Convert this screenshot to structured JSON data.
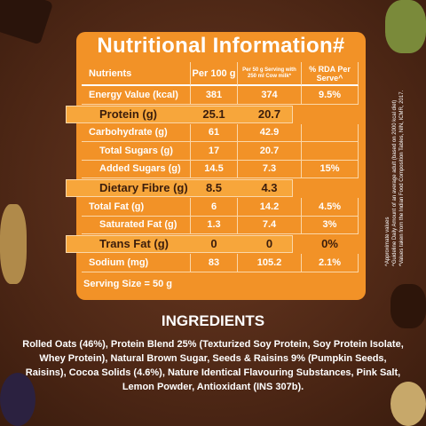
{
  "table": {
    "title": "Nutritional Information#",
    "header": [
      "Nutrients",
      "Per 100 g",
      "Per 50 g Serving with 250 ml Cow milk*",
      "% RDA Per Serve^"
    ],
    "rows": [
      {
        "cells": [
          "Energy Value (kcal)",
          "381",
          "374",
          "9.5%"
        ]
      },
      {
        "cells": [
          "Protein (g)",
          "25.1",
          "20.7"
        ],
        "highlight": true
      },
      {
        "cells": [
          "Carbohydrate (g)",
          "61",
          "42.9"
        ]
      },
      {
        "cells": [
          "Total Sugars (g)",
          "17",
          "20.7"
        ],
        "indent": true
      },
      {
        "cells": [
          "Added Sugars (g)",
          "14.5",
          "7.3",
          "15%"
        ],
        "indent": true
      },
      {
        "cells": [
          "Dietary Fibre (g)",
          "8.5",
          "4.3"
        ],
        "highlight": true
      },
      {
        "cells": [
          "Total Fat (g)",
          "6",
          "14.2",
          "4.5%"
        ]
      },
      {
        "cells": [
          "Saturated Fat (g)",
          "1.3",
          "7.4",
          "3%"
        ],
        "indent": true
      },
      {
        "cells": [
          "Trans Fat (g)",
          "0",
          "0",
          "0%"
        ],
        "highlight": true
      },
      {
        "cells": [
          "Sodium (mg)",
          "83",
          "105.2",
          "2.1%"
        ]
      }
    ],
    "serving_size": "Serving Size = 50 g"
  },
  "footnotes": [
    "^Approximate values",
    "^Guideline Daily Amount of an average adult (based on 2000 kcal diet)",
    "*Values taken from the Indian Food Composition Tables, NIN, ICMR, 2017."
  ],
  "ingredients": {
    "title": "INGREDIENTS",
    "text": "Rolled Oats (46%), Protein Blend 25% (Texturized Soy Protein, Soy Protein Isolate, Whey Protein), Natural Brown Sugar, Seeds & Raisins 9% (Pumpkin Seeds, Raisins), Cocoa Solids (4.6%), Nature Identical Flavouring Substances, Pink Salt, Lemon Powder, Antioxidant (INS 307b)."
  }
}
